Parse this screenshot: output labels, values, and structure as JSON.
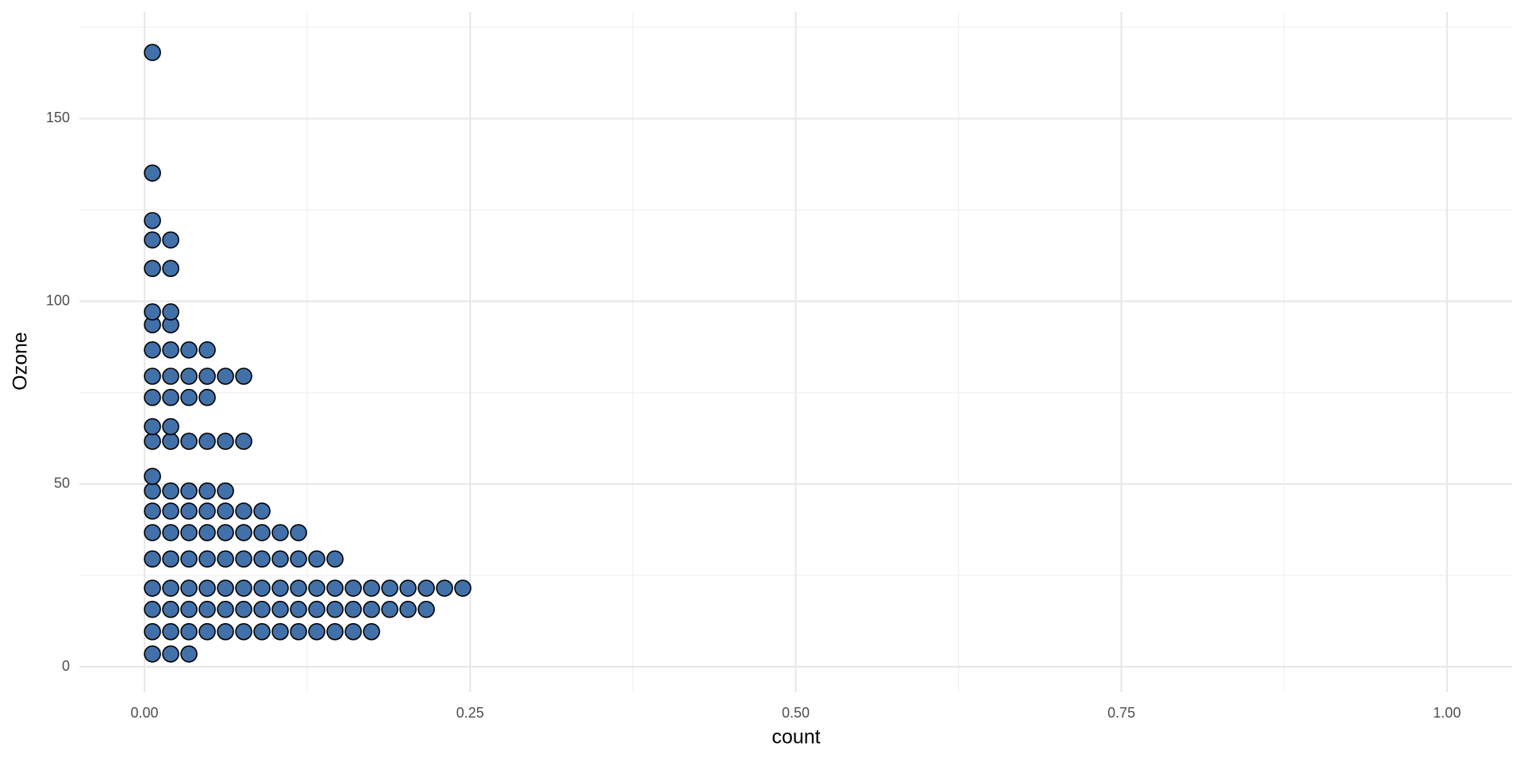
{
  "chart_data": {
    "type": "dotplot",
    "x_label": "count",
    "y_label": "Ozone",
    "y": [
      3.5,
      9.6,
      15.7,
      21.5,
      29.5,
      36.7,
      42.6,
      48.1,
      52.1,
      61.7,
      65.7,
      73.7,
      79.5,
      86.7,
      93.6,
      97.1,
      109.0,
      116.8,
      122.1,
      135.1,
      168.1
    ],
    "counts": [
      3,
      13,
      16,
      18,
      11,
      9,
      7,
      5,
      1,
      6,
      2,
      4,
      6,
      4,
      2,
      2,
      2,
      2,
      1,
      1,
      1
    ],
    "color": "#4270a8",
    "xlim": [
      -0.05,
      1.05
    ],
    "xticks": [
      {
        "value": 0,
        "label": "0.00"
      },
      {
        "value": 0.25,
        "label": "0.25"
      },
      {
        "value": 0.5,
        "label": "0.50"
      },
      {
        "value": 0.75,
        "label": "0.75"
      },
      {
        "value": 1,
        "label": "1.00"
      }
    ],
    "ylim": [
      -6.95,
      179.2
    ],
    "yticks": [
      0,
      50,
      100,
      150
    ],
    "grid": true
  }
}
